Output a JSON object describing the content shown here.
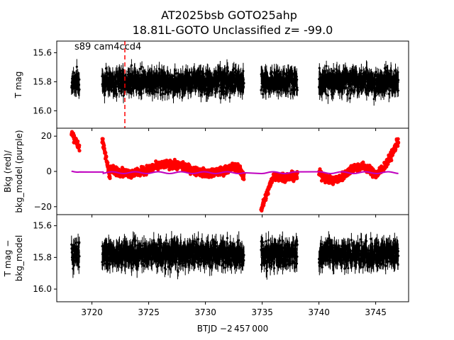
{
  "chart_data": {
    "type": "scatter",
    "title_line1": "AT2025bsb  GOTO25ahp",
    "title_line2": "18.81L-GOTO Unclassified z= -99.0",
    "xlabel": "BTJD −2 457 000",
    "xlim": [
      3716.9,
      3747.9
    ],
    "x_ticks": [
      3720,
      3725,
      3730,
      3735,
      3740,
      3745
    ],
    "x_tick_labels": [
      "3720",
      "3725",
      "3730",
      "3735",
      "3740",
      "3745"
    ],
    "segments": [
      [
        3718.2,
        3718.9
      ],
      [
        3720.9,
        3733.4
      ],
      [
        3734.9,
        3738.1
      ],
      [
        3740.0,
        3747.0
      ]
    ],
    "panels": [
      {
        "ylabel": "T mag",
        "inverted": true,
        "ylim": [
          16.12,
          15.52
        ],
        "y_ticks": [
          15.6,
          15.8,
          16.0
        ],
        "y_tick_labels": [
          "15.6",
          "15.8",
          "16.0"
        ],
        "series": [
          {
            "style": "errorbar",
            "color": "#000000",
            "center": 15.8,
            "spread": 0.1,
            "err": 0.05
          }
        ],
        "annotation": "s89 cam4ccd4",
        "vline": {
          "x": 3722.9,
          "color": "#ff0000",
          "style": "dashed"
        }
      },
      {
        "ylabel_line1": "Bkg (red)/",
        "ylabel_line2": "bkg_model (purple)",
        "ylim": [
          -24.5,
          24.5
        ],
        "y_ticks": [
          20,
          0,
          -20
        ],
        "y_tick_labels": [
          "20",
          "0",
          "−20"
        ],
        "series": [
          {
            "style": "points",
            "color": "#ff0000"
          },
          {
            "style": "line",
            "color": "#bf00bf"
          }
        ]
      },
      {
        "ylabel_line1": "T mag −",
        "ylabel_line2": "bkg_model",
        "inverted": true,
        "ylim": [
          16.08,
          15.53
        ],
        "y_ticks": [
          15.6,
          15.8,
          16.0
        ],
        "y_tick_labels": [
          "15.6",
          "15.8",
          "16.0"
        ],
        "series": [
          {
            "style": "errorbar",
            "color": "#000000",
            "center": 15.78,
            "spread": 0.1,
            "err": 0.05
          }
        ]
      }
    ]
  }
}
